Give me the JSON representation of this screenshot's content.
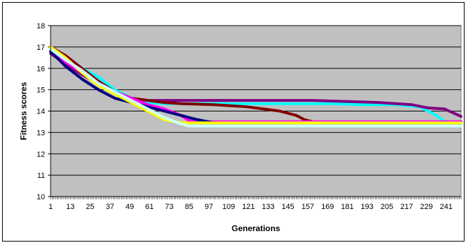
{
  "chart_data": {
    "type": "line",
    "title": "",
    "xlabel": "Generations",
    "ylabel": "Fitness scores",
    "xlim": [
      1,
      250
    ],
    "ylim": [
      10,
      18
    ],
    "y_ticks": [
      10,
      11,
      12,
      13,
      14,
      15,
      16,
      17,
      18
    ],
    "x_tick_labels": [
      1,
      13,
      25,
      37,
      49,
      61,
      73,
      85,
      97,
      109,
      121,
      133,
      145,
      157,
      169,
      181,
      193,
      205,
      217,
      229,
      241
    ],
    "grid": "horizontal",
    "plot_background": "#c0c0c0",
    "legend": "none",
    "series": [
      {
        "color": "#00ffff",
        "x": [
          1,
          10,
          20,
          30,
          40,
          50,
          60,
          70,
          80,
          90,
          100,
          110,
          130,
          150,
          170,
          190,
          210,
          225,
          235,
          240,
          250
        ],
        "y": [
          17.0,
          16.6,
          16.0,
          15.6,
          15.0,
          14.6,
          14.4,
          14.35,
          14.35,
          14.35,
          14.35,
          14.35,
          14.35,
          14.35,
          14.35,
          14.3,
          14.3,
          14.2,
          13.8,
          13.5,
          13.5
        ]
      },
      {
        "color": "#800080",
        "x": [
          1,
          10,
          20,
          30,
          40,
          50,
          60,
          80,
          100,
          120,
          140,
          160,
          180,
          200,
          220,
          230,
          240,
          250
        ],
        "y": [
          16.7,
          16.2,
          15.7,
          15.3,
          14.9,
          14.6,
          14.5,
          14.5,
          14.5,
          14.5,
          14.5,
          14.5,
          14.45,
          14.4,
          14.3,
          14.15,
          14.1,
          13.75
        ]
      },
      {
        "color": "#800000",
        "x": [
          1,
          10,
          20,
          30,
          40,
          50,
          60,
          70,
          80,
          100,
          120,
          130,
          140,
          150,
          155,
          160,
          165,
          250
        ],
        "y": [
          17.0,
          16.6,
          16.0,
          15.4,
          14.9,
          14.6,
          14.5,
          14.4,
          14.35,
          14.3,
          14.2,
          14.1,
          14.0,
          13.8,
          13.6,
          13.5,
          13.45,
          13.45
        ]
      },
      {
        "color": "#ff00ff",
        "x": [
          1,
          10,
          20,
          30,
          40,
          50,
          60,
          70,
          80,
          85,
          90,
          250
        ],
        "y": [
          16.8,
          16.3,
          15.8,
          15.3,
          14.9,
          14.6,
          14.3,
          14.1,
          13.8,
          13.55,
          13.5,
          13.5
        ]
      },
      {
        "color": "#000080",
        "x": [
          1,
          10,
          20,
          30,
          40,
          50,
          60,
          70,
          80,
          90,
          100,
          250
        ],
        "y": [
          16.8,
          16.1,
          15.5,
          15.0,
          14.6,
          14.4,
          14.2,
          14.0,
          13.8,
          13.6,
          13.45,
          13.45
        ]
      },
      {
        "color": "#ffff00",
        "x": [
          1,
          10,
          20,
          30,
          40,
          50,
          60,
          70,
          80,
          90,
          250
        ],
        "y": [
          17.0,
          16.5,
          15.8,
          15.2,
          14.8,
          14.4,
          14.0,
          13.6,
          13.45,
          13.45,
          13.45
        ]
      },
      {
        "color": "#ccffff",
        "x": [
          1,
          10,
          20,
          30,
          40,
          50,
          60,
          70,
          80,
          85,
          90,
          250
        ],
        "y": [
          16.9,
          16.4,
          15.9,
          15.3,
          14.9,
          14.5,
          14.1,
          13.7,
          13.4,
          13.3,
          13.3,
          13.3
        ]
      }
    ]
  }
}
